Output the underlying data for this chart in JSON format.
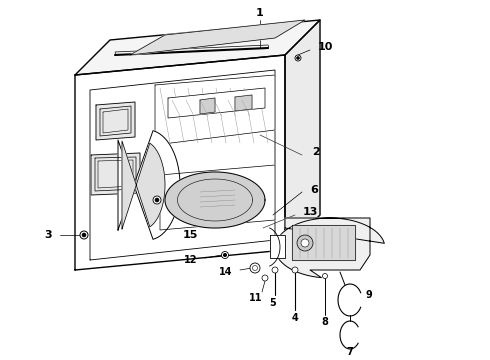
{
  "bg_color": "#ffffff",
  "line_color": "#000000",
  "text_color": "#000000",
  "fig_width": 4.9,
  "fig_height": 3.6,
  "dpi": 100,
  "lw_main": 0.7,
  "lw_thick": 1.0,
  "lw_thin": 0.4,
  "font_size": 7
}
